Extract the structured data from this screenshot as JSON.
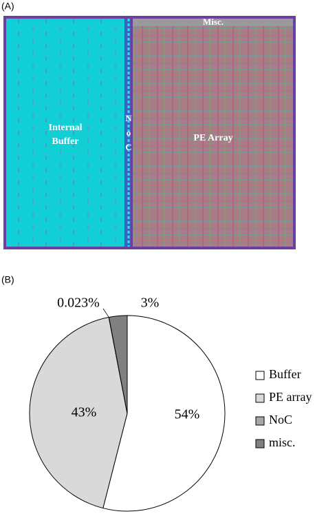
{
  "panel_labels": [
    "(A)",
    "(B)"
  ],
  "layout": {
    "labels": [
      "Misc.",
      "Internal",
      "Buffer",
      "N",
      "o",
      "C",
      "PE Array"
    ]
  },
  "chart_data": {
    "type": "pie",
    "categories": [
      "Buffer",
      "PE array",
      "NoC",
      "misc."
    ],
    "values": [
      54,
      43,
      0.023,
      3
    ],
    "value_labels": [
      "54%",
      "43%",
      "0.023%",
      "3%"
    ],
    "colors": [
      "#ffffff",
      "#d9d9d9",
      "#a6a6a6",
      "#808080"
    ],
    "legend": "right"
  }
}
